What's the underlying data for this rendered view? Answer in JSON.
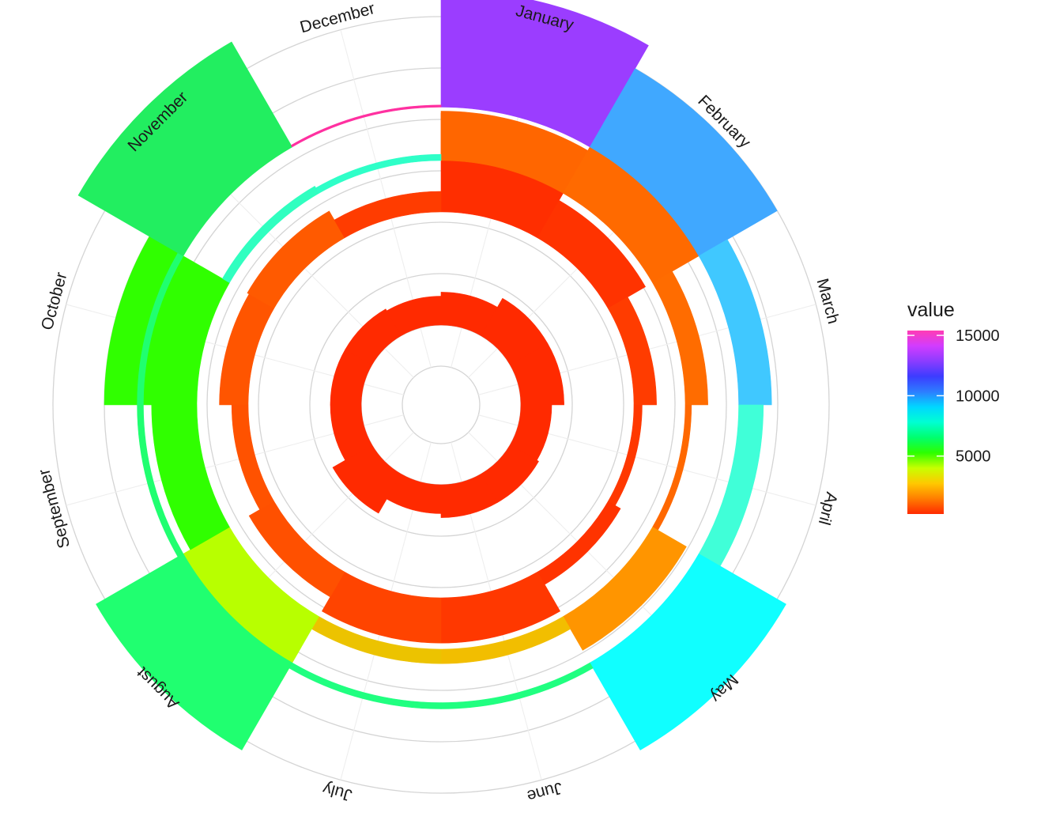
{
  "chart_data": {
    "type": "radial-bar",
    "title": "",
    "months": [
      "January",
      "February",
      "March",
      "April",
      "May",
      "June",
      "July",
      "August",
      "September",
      "October",
      "November",
      "December"
    ],
    "radial_range": [
      -2000,
      15000
    ],
    "gridlines": [
      0,
      2500,
      5000,
      7500,
      10000,
      12500,
      15000
    ],
    "rings": [
      {
        "name": "ring-1",
        "base": 0,
        "values": [
          1600,
          2100,
          2100,
          1500,
          1600,
          1600,
          1400,
          2200,
          1500,
          1500,
          1500,
          1400
        ]
      },
      {
        "name": "ring-2",
        "base": 5500,
        "values": [
          4800,
          2100,
          1100,
          400,
          700,
          2200,
          2200,
          1400,
          800,
          1400,
          1500,
          1000
        ]
      },
      {
        "name": "ring-3",
        "base": 8000,
        "values": [
          2400,
          3800,
          1100,
          300,
          1900,
          700,
          700,
          3600,
          2200,
          4500,
          400,
          300
        ]
      },
      {
        "name": "ring-4",
        "base": 10600,
        "values": [
          5700,
          4400,
          1600,
          1200,
          4900,
          300,
          300,
          4900,
          300,
          300,
          5900,
          100
        ]
      }
    ],
    "ring_colors": [
      [
        "#ff2a00",
        "#ff2a00",
        "#ff2a00",
        "#ff2a00",
        "#ff2a00",
        "#ff2a00",
        "#ff2a00",
        "#ff2a00",
        "#ff2a00",
        "#ff2a00",
        "#ff2a00",
        "#ff2a00"
      ],
      [
        "#ff2e00",
        "#ff3300",
        "#ff3c00",
        "#ff3800",
        "#ff3300",
        "#ff3800",
        "#ff4400",
        "#ff5000",
        "#ff5200",
        "#ff5500",
        "#ff5a00",
        "#ff3c00"
      ],
      [
        "#ff6600",
        "#ff6a00",
        "#ff6c00",
        "#ff6800",
        "#ff9500",
        "#f2be00",
        "#ecc300",
        "#b8ff00",
        "#30ff00",
        "#30ff00",
        "#30ffc0",
        "#2fffc8"
      ],
      [
        "#9b3dff",
        "#40a8ff",
        "#40c8ff",
        "#40ffd8",
        "#10ffff",
        "#20ff80",
        "#20ff80",
        "#20ff70",
        "#20ff70",
        "#20ff70",
        "#22ee60",
        "#ff30a0"
      ]
    ],
    "legend": {
      "title": "value",
      "ticks": [
        {
          "value": 15000,
          "label": "15000"
        },
        {
          "value": 10000,
          "label": "10000"
        },
        {
          "value": 5000,
          "label": "5000"
        }
      ],
      "range": [
        200,
        15400
      ],
      "gradient": [
        "#ff2a00",
        "#ff7d00",
        "#ffc800",
        "#c8ff00",
        "#2dff00",
        "#00ff6e",
        "#00ffd2",
        "#00d7ff",
        "#2d7dff",
        "#3c3cff",
        "#8c3cff",
        "#d23cff",
        "#ff3cb4"
      ]
    }
  }
}
